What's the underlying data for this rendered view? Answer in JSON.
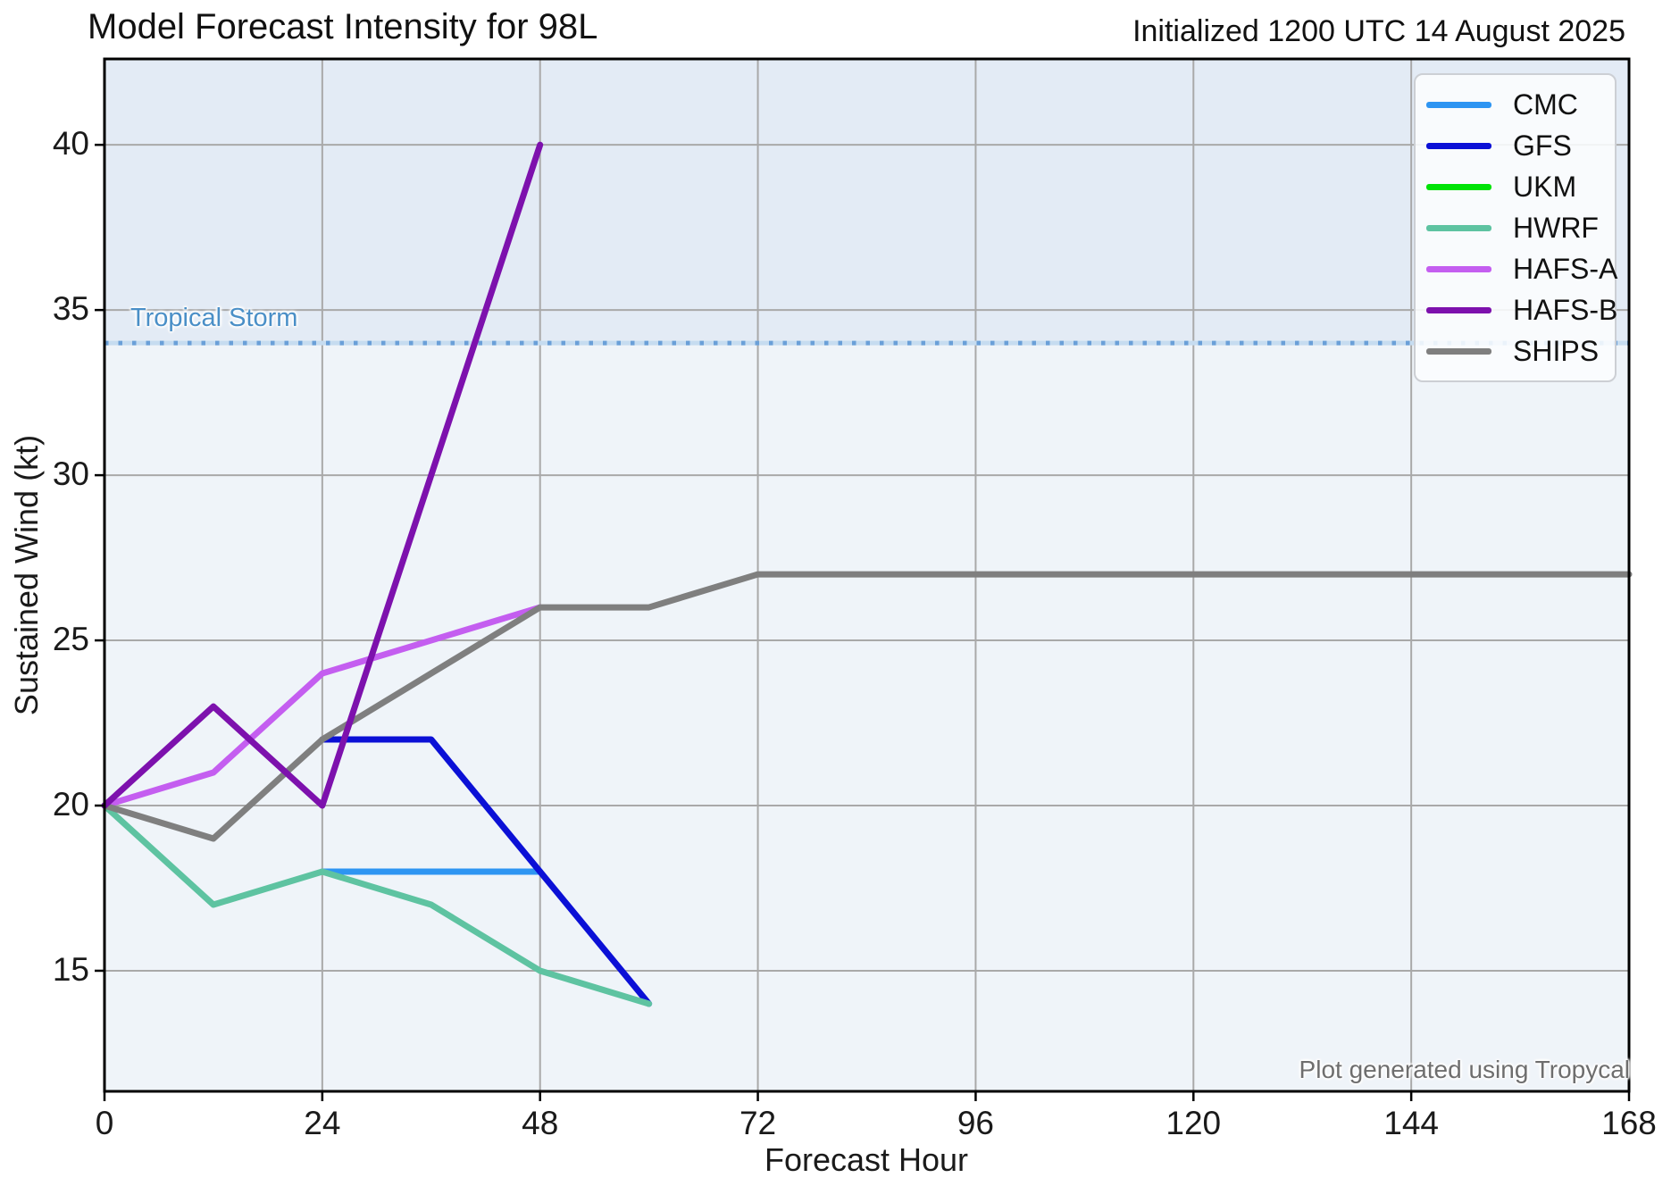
{
  "header": {
    "title": "Model Forecast Intensity for 98L",
    "initialized": "Initialized 1200 UTC 14 August 2025"
  },
  "axes": {
    "xlabel": "Forecast Hour",
    "ylabel": "Sustained Wind (kt)",
    "x_ticks": [
      0,
      24,
      48,
      72,
      96,
      120,
      144,
      168
    ],
    "y_ticks": [
      15,
      20,
      25,
      30,
      35,
      40
    ]
  },
  "threshold": {
    "label": "Tropical Storm",
    "value": 34,
    "label_color": "#4a8fc7",
    "dot_color": "#6aa0d8",
    "underlay_color": "#c6dcf0"
  },
  "credit": "Plot generated using Tropycal",
  "legend": {
    "items": [
      "CMC",
      "GFS",
      "UKM",
      "HWRF",
      "HAFS-A",
      "HAFS-B",
      "SHIPS"
    ]
  },
  "colors": {
    "grid": "#a9a9a9",
    "spine": "#000000",
    "band_above_threshold": "#e3ebf5",
    "band_below_threshold": "#eff4f9"
  },
  "chart_data": {
    "type": "line",
    "title": "Model Forecast Intensity for 98L",
    "xlabel": "Forecast Hour",
    "ylabel": "Sustained Wind (kt)",
    "xlim": [
      0,
      168
    ],
    "ylim": [
      11.35,
      42.6
    ],
    "grid": true,
    "legend_position": "upper right",
    "threshold_line": {
      "label": "Tropical Storm",
      "value": 34
    },
    "series": [
      {
        "name": "CMC",
        "color": "#2e95f2",
        "x": [
          24,
          48
        ],
        "y": [
          18,
          18
        ]
      },
      {
        "name": "GFS",
        "color": "#0b10d6",
        "x": [
          24,
          36,
          48,
          60
        ],
        "y": [
          22,
          22,
          18,
          14
        ]
      },
      {
        "name": "UKM",
        "color": "#00e307",
        "x": [],
        "y": []
      },
      {
        "name": "HWRF",
        "color": "#5ec3a1",
        "x": [
          0,
          12,
          24,
          36,
          48,
          60
        ],
        "y": [
          20,
          17,
          18,
          17,
          15,
          14
        ]
      },
      {
        "name": "HAFS-A",
        "color": "#c45ef0",
        "x": [
          0,
          12,
          24,
          36,
          48
        ],
        "y": [
          20,
          21,
          24,
          25,
          26
        ]
      },
      {
        "name": "HAFS-B",
        "color": "#7d11ad",
        "x": [
          0,
          12,
          24,
          48
        ],
        "y": [
          20,
          23,
          20,
          40
        ]
      },
      {
        "name": "SHIPS",
        "color": "#7f7f7f",
        "x": [
          0,
          12,
          24,
          36,
          48,
          60,
          72,
          96,
          120,
          144,
          168
        ],
        "y": [
          20,
          19,
          22,
          24,
          26,
          26,
          27,
          27,
          27,
          27,
          27
        ]
      }
    ]
  }
}
